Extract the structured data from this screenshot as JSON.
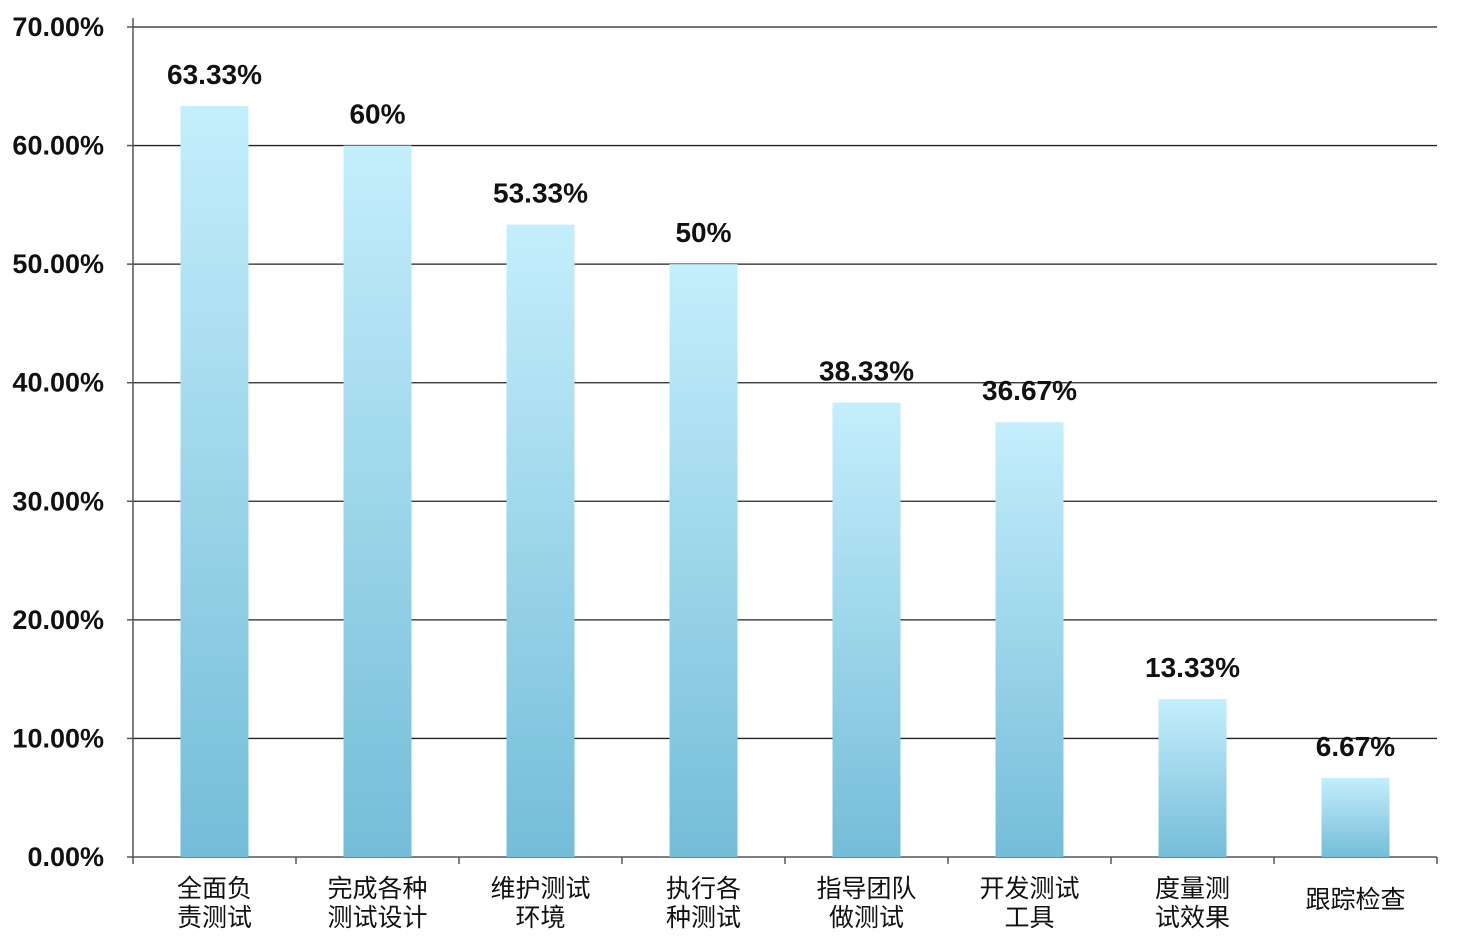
{
  "chart_data": {
    "type": "bar",
    "categories": [
      [
        "全面负",
        "责测试"
      ],
      [
        "完成各种",
        "测试设计"
      ],
      [
        "维护测试",
        "环境"
      ],
      [
        "执行各",
        "种测试"
      ],
      [
        "指导团队",
        "做测试"
      ],
      [
        "开发测试",
        "工具"
      ],
      [
        "度量测",
        "试效果"
      ],
      [
        "跟踪检查"
      ]
    ],
    "values": [
      63.33,
      60,
      53.33,
      50,
      38.33,
      36.67,
      13.33,
      6.67
    ],
    "data_labels": [
      "63.33%",
      "60%",
      "53.33%",
      "50%",
      "38.33%",
      "36.67%",
      "13.33%",
      "6.67%"
    ],
    "y_ticks": [
      0,
      10,
      20,
      30,
      40,
      50,
      60,
      70
    ],
    "y_tick_labels": [
      "0.00%",
      "10.00%",
      "20.00%",
      "30.00%",
      "40.00%",
      "50.00%",
      "60.00%",
      "70.00%"
    ],
    "ylim": [
      0,
      70
    ],
    "grid": true,
    "title": "",
    "xlabel": "",
    "ylabel": "",
    "colors": {
      "bar_top": "#c4eefc",
      "bar_bottom": "#74bdd8",
      "grid": "#222222",
      "axis": "#555555"
    }
  }
}
